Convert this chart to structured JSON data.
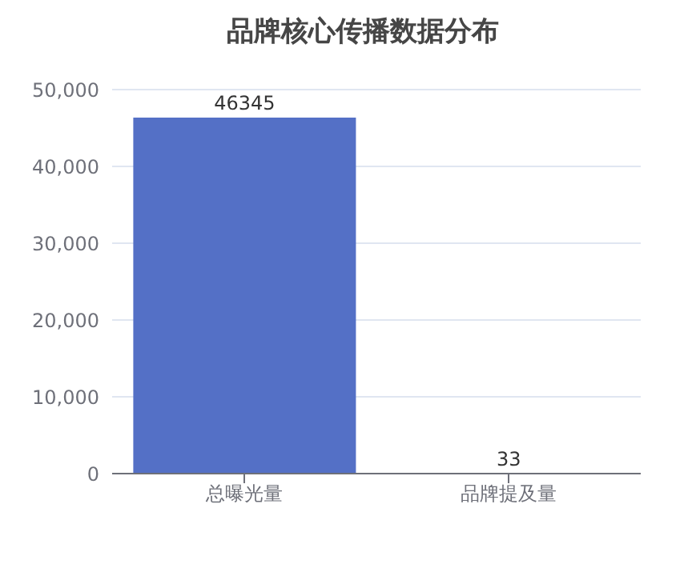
{
  "chart_data": {
    "type": "bar",
    "title": "品牌核心传播数据分布",
    "categories": [
      "总曝光量",
      "品牌提及量"
    ],
    "values": [
      46345,
      33
    ],
    "color": "#5470c6",
    "ylim": [
      0,
      50000
    ],
    "yticks": [
      {
        "value": 0,
        "label": "0"
      },
      {
        "value": 10000,
        "label": "10,000"
      },
      {
        "value": 20000,
        "label": "20,000"
      },
      {
        "value": 30000,
        "label": "30,000"
      },
      {
        "value": 40000,
        "label": "40,000"
      },
      {
        "value": 50000,
        "label": "50,000"
      }
    ],
    "grid": "y",
    "data_labels": true
  }
}
